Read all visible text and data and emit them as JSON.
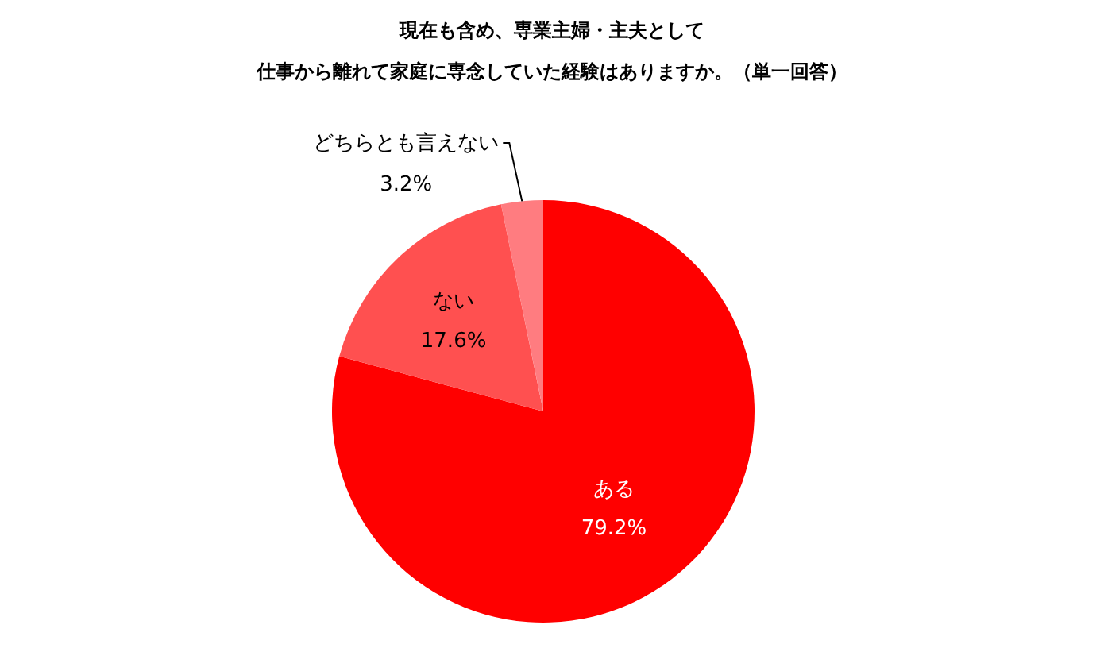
{
  "chart_data": {
    "type": "pie",
    "title": "現在も含め、専業主婦・主夫として",
    "subtitle": "仕事から離れて家庭に専念していた経験はありますか。（単一回答）",
    "categories": [
      "ある",
      "ない",
      "どちらとも言えない"
    ],
    "values": [
      79.2,
      17.6,
      3.2
    ],
    "colors": [
      "#ff0000",
      "#ff5050",
      "#ff7c80"
    ],
    "value_labels": [
      "79.2%",
      "17.6%",
      "3.2%"
    ]
  }
}
